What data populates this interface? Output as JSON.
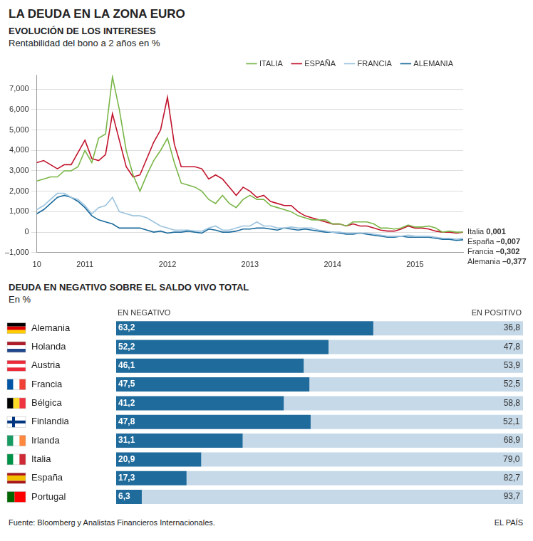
{
  "title": "LA DEUDA EN LA ZONA EURO",
  "source": "Fuente: Bloomberg y Analistas Financieros Internacionales.",
  "credit": "EL PAÍS",
  "chart_data": [
    {
      "type": "line",
      "title": "EVOLUCIÓN DE LOS INTERESES",
      "subtitle": "Rentabilidad del bono a 2 años en %",
      "categories": [
        "10",
        null,
        null,
        null,
        null,
        null,
        null,
        "2011",
        null,
        null,
        null,
        null,
        null,
        null,
        null,
        null,
        null,
        null,
        null,
        "2012",
        null,
        null,
        null,
        null,
        null,
        null,
        null,
        null,
        null,
        null,
        null,
        "2013",
        null,
        null,
        null,
        null,
        null,
        null,
        null,
        null,
        null,
        null,
        null,
        "2014",
        null,
        null,
        null,
        null,
        null,
        null,
        null,
        null,
        null,
        null,
        null,
        "2015",
        null,
        null,
        null,
        null,
        null,
        null,
        null
      ],
      "series": [
        {
          "name": "ITALIA",
          "label": "Italia",
          "end_label": "0,001",
          "color": "#7ab648",
          "values": [
            2.5,
            2.6,
            2.7,
            2.7,
            3.0,
            3.0,
            3.2,
            4.0,
            3.4,
            4.6,
            4.8,
            7.6,
            6.0,
            4.0,
            2.8,
            2.0,
            2.8,
            3.5,
            4.0,
            4.6,
            3.4,
            2.4,
            2.3,
            2.2,
            2.0,
            1.6,
            1.4,
            1.8,
            1.4,
            1.2,
            1.6,
            1.8,
            1.6,
            1.6,
            1.3,
            1.2,
            1.1,
            1.0,
            0.8,
            0.7,
            0.6,
            0.6,
            0.6,
            0.4,
            0.4,
            0.3,
            0.5,
            0.5,
            0.5,
            0.4,
            0.2,
            0.2,
            0.15,
            0.2,
            0.35,
            0.25,
            0.25,
            0.3,
            0.2,
            0.0,
            0.05,
            0.0,
            0.001
          ]
        },
        {
          "name": "ESPAÑA",
          "label": "España",
          "end_label": "–0,007",
          "color": "#c0132b",
          "values": [
            3.4,
            3.5,
            3.3,
            3.1,
            3.3,
            3.3,
            3.9,
            4.5,
            3.6,
            3.5,
            3.8,
            5.8,
            4.5,
            3.2,
            2.7,
            2.8,
            3.6,
            4.4,
            5.0,
            6.6,
            4.3,
            3.2,
            3.2,
            3.2,
            3.1,
            2.6,
            2.8,
            2.6,
            2.2,
            1.8,
            2.2,
            2.0,
            1.7,
            1.8,
            1.5,
            1.4,
            1.3,
            1.3,
            1.0,
            0.8,
            0.7,
            0.6,
            0.5,
            0.4,
            0.4,
            0.3,
            0.4,
            0.3,
            0.3,
            0.2,
            0.1,
            0.05,
            0.05,
            0.15,
            0.3,
            0.2,
            0.2,
            0.15,
            0.05,
            0.0,
            0.0,
            -0.05,
            -0.007
          ]
        },
        {
          "name": "FRANCIA",
          "label": "Francia",
          "end_label": "–0,302",
          "color": "#9cc3de",
          "values": [
            1.1,
            1.3,
            1.6,
            1.9,
            1.9,
            1.7,
            1.6,
            1.3,
            0.9,
            1.2,
            1.3,
            1.7,
            1.0,
            0.9,
            0.8,
            0.8,
            0.7,
            0.5,
            0.3,
            0.2,
            0.1,
            0.1,
            0.1,
            0.05,
            0.05,
            0.2,
            0.3,
            0.1,
            0.1,
            0.2,
            0.3,
            0.3,
            0.5,
            0.3,
            0.3,
            0.2,
            0.2,
            0.25,
            0.2,
            0.2,
            0.2,
            0.1,
            0.05,
            0.0,
            0.0,
            -0.05,
            -0.05,
            -0.05,
            -0.05,
            -0.1,
            -0.15,
            -0.2,
            -0.2,
            -0.2,
            -0.15,
            -0.2,
            -0.2,
            -0.2,
            -0.25,
            -0.3,
            -0.3,
            -0.35,
            -0.302
          ]
        },
        {
          "name": "ALEMANIA",
          "label": "Alemania",
          "end_label": "–0,377",
          "color": "#1b6a9c",
          "values": [
            0.9,
            1.1,
            1.4,
            1.7,
            1.8,
            1.7,
            1.5,
            1.2,
            0.8,
            0.6,
            0.5,
            0.4,
            0.2,
            0.2,
            0.2,
            0.2,
            0.1,
            0.0,
            0.05,
            -0.05,
            0.0,
            0.0,
            0.05,
            0.0,
            -0.05,
            0.15,
            0.1,
            0.0,
            0.0,
            0.05,
            0.15,
            0.15,
            0.2,
            0.2,
            0.15,
            0.1,
            0.2,
            0.15,
            0.1,
            0.15,
            0.1,
            0.05,
            0.0,
            0.0,
            -0.05,
            -0.1,
            -0.1,
            -0.05,
            -0.1,
            -0.15,
            -0.2,
            -0.25,
            -0.25,
            -0.2,
            -0.25,
            -0.25,
            -0.25,
            -0.25,
            -0.3,
            -0.35,
            -0.35,
            -0.4,
            -0.377
          ]
        }
      ],
      "ylim": [
        -1,
        7.7
      ],
      "yticks": [
        {
          "value": -1,
          "label": "–1,000"
        },
        0,
        {
          "value": 1,
          "label": "1,000"
        },
        {
          "value": 2,
          "label": "2,000"
        },
        {
          "value": 3,
          "label": "3,000"
        },
        {
          "value": 4,
          "label": "4,000"
        },
        {
          "value": 5,
          "label": "5,000"
        },
        {
          "value": 6,
          "label": "6,000"
        },
        {
          "value": 7,
          "label": "7,000"
        }
      ],
      "grid": true,
      "legend": "top-right"
    },
    {
      "type": "bar",
      "title": "DEUDA EN NEGATIVO SOBRE EL SALDO VIVO TOTAL",
      "subtitle": "En %",
      "orientation": "horizontal",
      "stacked": true,
      "data_labels": true,
      "grid": false,
      "tick_labels": "y",
      "categories": [
        "Alemania",
        "Holanda",
        "Austria",
        "Francia",
        "Bélgica",
        "Finlandia",
        "Irlanda",
        "Italia",
        "España",
        "Portugal"
      ],
      "series": [
        {
          "name": "EN NEGATIVO",
          "color": "#1f6b9c",
          "values": [
            63.2,
            52.2,
            46.1,
            47.5,
            41.2,
            47.8,
            31.1,
            20.9,
            17.3,
            6.3
          ],
          "value_labels": [
            "63,2",
            "52,2",
            "46,1",
            "47,5",
            "41,2",
            "47,8",
            "31,1",
            "20,9",
            "17,3",
            "6,3"
          ]
        },
        {
          "name": "EN POSITIVO",
          "color": "#c6d9e8",
          "values": [
            36.8,
            47.8,
            53.9,
            52.5,
            58.8,
            52.1,
            68.9,
            79.0,
            82.7,
            93.7
          ],
          "value_labels": [
            "36,8",
            "47,8",
            "53,9",
            "52,5",
            "58,8",
            "52,1",
            "68,9",
            "79,0",
            "82,7",
            "93,7"
          ]
        }
      ],
      "xlim": [
        0,
        100
      ]
    }
  ]
}
